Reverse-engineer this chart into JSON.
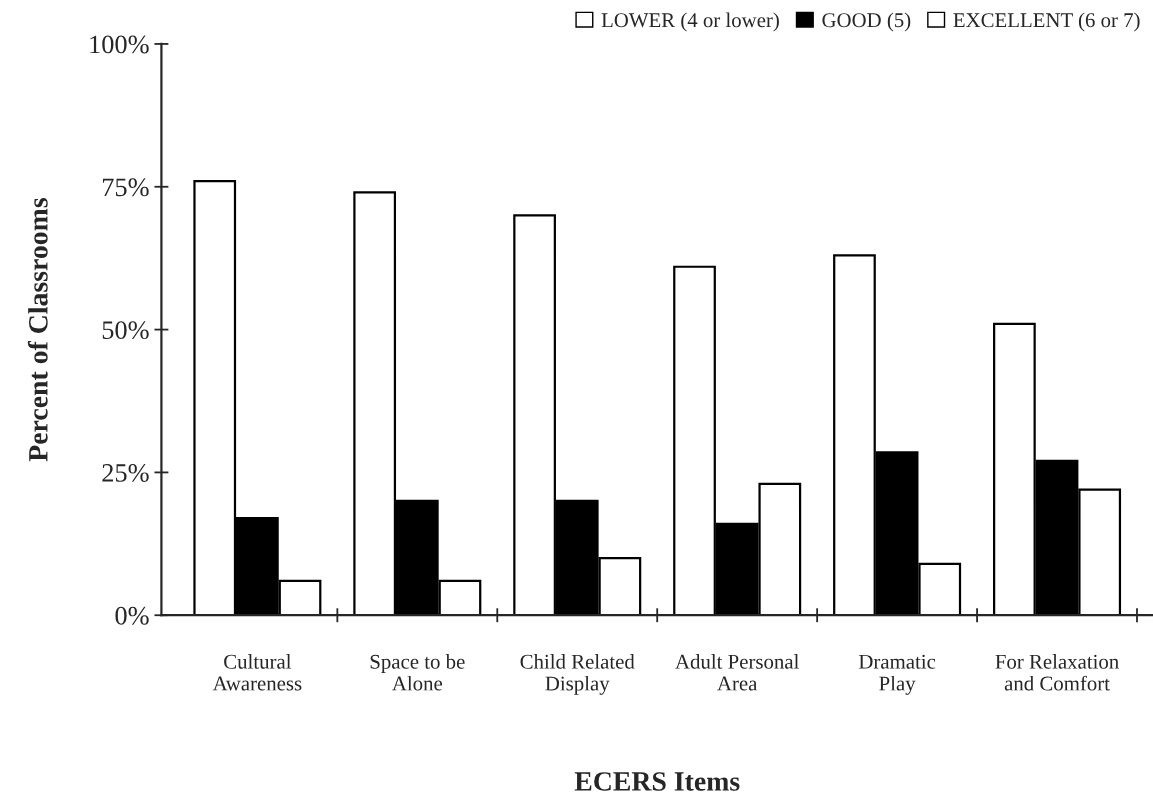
{
  "chart_data": {
    "type": "bar",
    "xlabel": "ECERS Items",
    "ylabel": "Percent of Classrooms",
    "categories": [
      "Cultural\nAwareness",
      "Space to be\nAlone",
      "Child Related\nDisplay",
      "Adult Personal\nArea",
      "Dramatic\nPlay",
      "For Relaxation\nand Comfort"
    ],
    "series": [
      {
        "name": "LOWER (4 or lower)",
        "color": "#ffffff",
        "values": [
          76,
          74,
          70,
          61,
          63,
          51
        ]
      },
      {
        "name": "GOOD (5)",
        "color": "#000000",
        "values": [
          17,
          20,
          20,
          16,
          28.5,
          27
        ]
      },
      {
        "name": "EXCELLENT (6 or 7)",
        "color": "#ffffff",
        "values": [
          6,
          6,
          10,
          23,
          9,
          22
        ]
      }
    ],
    "ylim": [
      0,
      100
    ],
    "yticks": [
      {
        "value": 0,
        "label": "0%"
      },
      {
        "value": 25,
        "label": "25%"
      },
      {
        "value": 50,
        "label": "50%"
      },
      {
        "value": 75,
        "label": "75%"
      },
      {
        "value": 100,
        "label": "100%"
      }
    ],
    "legend": "top right",
    "grid": false
  }
}
